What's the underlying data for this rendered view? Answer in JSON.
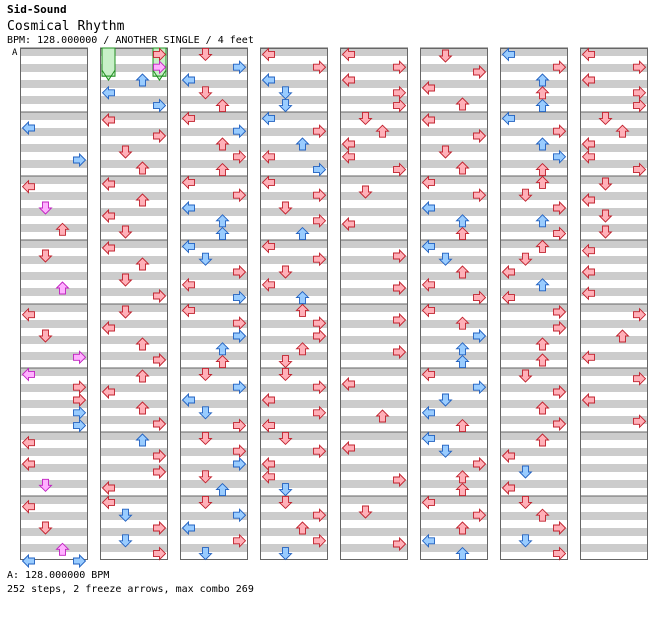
{
  "header": {
    "artist": "Sid-Sound",
    "title": "Cosmical Rhythm",
    "meta": "BPM: 128.000000 / ANOTHER SINGLE / 4 feet"
  },
  "marker": "A",
  "footer": {
    "bpm_line": "A: 128.000000 BPM",
    "stats_line": "252 steps, 2 freeze arrows, max combo 269"
  },
  "colors": {
    "quarter": "#ffb0b8",
    "quarter_stroke": "#c0202c",
    "eighth": "#99ccff",
    "eighth_stroke": "#2060c0",
    "sixteenth": "#ffb0ff",
    "sixteenth_stroke": "#c020c0",
    "freeze": "#c8f0c8",
    "freeze_stroke": "#209020",
    "stripe": "#cccccc"
  },
  "chart": {
    "columns": 8,
    "measures_per_column": 8,
    "notes": [
      [
        0,
        2,
        0,
        "e"
      ],
      [
        0,
        2,
        3,
        "e"
      ],
      [
        0,
        3,
        0,
        "q"
      ],
      [
        0,
        3,
        1,
        "s"
      ],
      [
        0,
        3,
        2,
        "q"
      ],
      [
        0,
        4,
        1,
        "q"
      ],
      [
        0,
        4,
        2,
        "s"
      ],
      [
        0,
        5,
        0,
        "q"
      ],
      [
        0,
        5,
        1,
        "q"
      ],
      [
        0,
        5,
        3,
        "s"
      ],
      [
        0,
        6,
        0,
        "s"
      ],
      [
        0,
        6,
        3,
        "q"
      ],
      [
        0,
        6,
        3,
        "q"
      ],
      [
        0,
        6,
        3,
        "e"
      ],
      [
        0,
        6,
        3,
        "e"
      ],
      [
        0,
        7,
        0,
        "q"
      ],
      [
        0,
        7,
        0,
        "q"
      ],
      [
        0,
        7,
        1,
        "s"
      ],
      [
        0,
        8,
        0,
        "q"
      ],
      [
        0,
        8,
        1,
        "q"
      ],
      [
        0,
        8,
        2,
        "s"
      ],
      [
        0,
        9,
        0,
        "e"
      ],
      [
        0,
        9,
        3,
        "e"
      ],
      [
        1,
        1,
        3,
        "q"
      ],
      [
        1,
        1,
        3,
        "s"
      ],
      [
        1,
        1,
        2,
        "e"
      ],
      [
        1,
        1,
        0,
        "e"
      ],
      [
        1,
        1,
        3,
        "e"
      ],
      [
        1,
        2,
        0,
        "q"
      ],
      [
        1,
        2,
        3,
        "q"
      ],
      [
        1,
        2,
        1,
        "q"
      ],
      [
        1,
        2,
        2,
        "q"
      ],
      [
        1,
        3,
        0,
        "q"
      ],
      [
        1,
        3,
        2,
        "q"
      ],
      [
        1,
        3,
        0,
        "q"
      ],
      [
        1,
        3,
        1,
        "q"
      ],
      [
        1,
        4,
        0,
        "q"
      ],
      [
        1,
        4,
        2,
        "q"
      ],
      [
        1,
        4,
        1,
        "q"
      ],
      [
        1,
        4,
        3,
        "q"
      ],
      [
        1,
        5,
        1,
        "q"
      ],
      [
        1,
        5,
        0,
        "q"
      ],
      [
        1,
        5,
        2,
        "q"
      ],
      [
        1,
        5,
        3,
        "q"
      ],
      [
        1,
        6,
        2,
        "q"
      ],
      [
        1,
        6,
        0,
        "q"
      ],
      [
        1,
        6,
        2,
        "q"
      ],
      [
        1,
        6,
        3,
        "q"
      ],
      [
        1,
        7,
        2,
        "e"
      ],
      [
        1,
        7,
        3,
        "q"
      ],
      [
        1,
        7,
        3,
        "q"
      ],
      [
        1,
        7,
        0,
        "q"
      ],
      [
        1,
        8,
        0,
        "q"
      ],
      [
        1,
        8,
        1,
        "e"
      ],
      [
        1,
        8,
        3,
        "q"
      ],
      [
        1,
        8,
        1,
        "e"
      ],
      [
        1,
        8,
        3,
        "q"
      ],
      [
        2,
        1,
        1,
        "q"
      ],
      [
        2,
        1,
        3,
        "e"
      ],
      [
        2,
        1,
        0,
        "e"
      ],
      [
        2,
        1,
        1,
        "q"
      ],
      [
        2,
        1,
        2,
        "q"
      ],
      [
        2,
        2,
        0,
        "q"
      ],
      [
        2,
        2,
        3,
        "e"
      ],
      [
        2,
        2,
        2,
        "q"
      ],
      [
        2,
        2,
        3,
        "q"
      ],
      [
        2,
        2,
        2,
        "q"
      ],
      [
        2,
        3,
        0,
        "q"
      ],
      [
        2,
        3,
        3,
        "q"
      ],
      [
        2,
        3,
        0,
        "e"
      ],
      [
        2,
        3,
        2,
        "e"
      ],
      [
        2,
        3,
        2,
        "e"
      ],
      [
        2,
        4,
        0,
        "e"
      ],
      [
        2,
        4,
        1,
        "e"
      ],
      [
        2,
        4,
        3,
        "q"
      ],
      [
        2,
        4,
        0,
        "q"
      ],
      [
        2,
        4,
        3,
        "e"
      ],
      [
        2,
        5,
        0,
        "q"
      ],
      [
        2,
        5,
        3,
        "q"
      ],
      [
        2,
        5,
        3,
        "e"
      ],
      [
        2,
        5,
        2,
        "e"
      ],
      [
        2,
        5,
        2,
        "q"
      ],
      [
        2,
        6,
        1,
        "q"
      ],
      [
        2,
        6,
        3,
        "e"
      ],
      [
        2,
        6,
        0,
        "e"
      ],
      [
        2,
        6,
        1,
        "e"
      ],
      [
        2,
        6,
        3,
        "q"
      ],
      [
        2,
        7,
        1,
        "q"
      ],
      [
        2,
        7,
        3,
        "q"
      ],
      [
        2,
        7,
        3,
        "e"
      ],
      [
        2,
        7,
        1,
        "q"
      ],
      [
        2,
        7,
        2,
        "e"
      ],
      [
        2,
        8,
        1,
        "q"
      ],
      [
        2,
        8,
        3,
        "e"
      ],
      [
        2,
        8,
        0,
        "e"
      ],
      [
        2,
        8,
        3,
        "q"
      ],
      [
        2,
        8,
        1,
        "e"
      ],
      [
        3,
        1,
        0,
        "q"
      ],
      [
        3,
        1,
        3,
        "q"
      ],
      [
        3,
        1,
        0,
        "e"
      ],
      [
        3,
        1,
        1,
        "e"
      ],
      [
        3,
        1,
        1,
        "e"
      ],
      [
        3,
        2,
        0,
        "e"
      ],
      [
        3,
        2,
        3,
        "q"
      ],
      [
        3,
        2,
        2,
        "e"
      ],
      [
        3,
        2,
        0,
        "q"
      ],
      [
        3,
        2,
        3,
        "e"
      ],
      [
        3,
        3,
        0,
        "q"
      ],
      [
        3,
        3,
        3,
        "q"
      ],
      [
        3,
        3,
        1,
        "q"
      ],
      [
        3,
        3,
        3,
        "q"
      ],
      [
        3,
        3,
        2,
        "e"
      ],
      [
        3,
        4,
        0,
        "q"
      ],
      [
        3,
        4,
        3,
        "q"
      ],
      [
        3,
        4,
        1,
        "q"
      ],
      [
        3,
        4,
        0,
        "q"
      ],
      [
        3,
        4,
        2,
        "e"
      ],
      [
        3,
        5,
        2,
        "q"
      ],
      [
        3,
        5,
        3,
        "q"
      ],
      [
        3,
        5,
        3,
        "q"
      ],
      [
        3,
        5,
        2,
        "q"
      ],
      [
        3,
        5,
        1,
        "q"
      ],
      [
        3,
        6,
        1,
        "q"
      ],
      [
        3,
        6,
        3,
        "q"
      ],
      [
        3,
        6,
        0,
        "q"
      ],
      [
        3,
        6,
        3,
        "q"
      ],
      [
        3,
        6,
        0,
        "q"
      ],
      [
        3,
        7,
        1,
        "q"
      ],
      [
        3,
        7,
        3,
        "q"
      ],
      [
        3,
        7,
        0,
        "q"
      ],
      [
        3,
        7,
        0,
        "q"
      ],
      [
        3,
        7,
        1,
        "e"
      ],
      [
        3,
        8,
        1,
        "q"
      ],
      [
        3,
        8,
        3,
        "q"
      ],
      [
        3,
        8,
        2,
        "q"
      ],
      [
        3,
        8,
        3,
        "q"
      ],
      [
        3,
        8,
        1,
        "e"
      ],
      [
        4,
        1,
        0,
        "q"
      ],
      [
        4,
        1,
        3,
        "q"
      ],
      [
        4,
        1,
        0,
        "q"
      ],
      [
        4,
        1,
        3,
        "q"
      ],
      [
        4,
        1,
        3,
        "q"
      ],
      [
        4,
        2,
        1,
        "q"
      ],
      [
        4,
        2,
        2,
        "q"
      ],
      [
        4,
        2,
        0,
        "q"
      ],
      [
        4,
        2,
        0,
        "q"
      ],
      [
        4,
        2,
        3,
        "q"
      ],
      [
        4,
        3,
        1,
        "q"
      ],
      [
        4,
        3,
        0,
        "q"
      ],
      [
        4,
        4,
        3,
        "q"
      ],
      [
        4,
        4,
        3,
        "q"
      ],
      [
        4,
        5,
        3,
        "q"
      ],
      [
        4,
        5,
        3,
        "q"
      ],
      [
        4,
        6,
        0,
        "q"
      ],
      [
        4,
        6,
        2,
        "q"
      ],
      [
        4,
        7,
        0,
        "q"
      ],
      [
        4,
        7,
        3,
        "q"
      ],
      [
        4,
        8,
        1,
        "q"
      ],
      [
        4,
        8,
        3,
        "q"
      ],
      [
        5,
        1,
        1,
        "q"
      ],
      [
        5,
        1,
        3,
        "q"
      ],
      [
        5,
        1,
        0,
        "q"
      ],
      [
        5,
        1,
        2,
        "q"
      ],
      [
        5,
        2,
        0,
        "q"
      ],
      [
        5,
        2,
        3,
        "q"
      ],
      [
        5,
        2,
        1,
        "q"
      ],
      [
        5,
        2,
        2,
        "q"
      ],
      [
        5,
        3,
        0,
        "q"
      ],
      [
        5,
        3,
        3,
        "q"
      ],
      [
        5,
        3,
        0,
        "e"
      ],
      [
        5,
        3,
        2,
        "e"
      ],
      [
        5,
        3,
        2,
        "q"
      ],
      [
        5,
        4,
        0,
        "e"
      ],
      [
        5,
        4,
        1,
        "e"
      ],
      [
        5,
        4,
        2,
        "q"
      ],
      [
        5,
        4,
        0,
        "q"
      ],
      [
        5,
        4,
        3,
        "q"
      ],
      [
        5,
        5,
        0,
        "q"
      ],
      [
        5,
        5,
        2,
        "q"
      ],
      [
        5,
        5,
        3,
        "e"
      ],
      [
        5,
        5,
        2,
        "e"
      ],
      [
        5,
        5,
        2,
        "e"
      ],
      [
        5,
        6,
        0,
        "q"
      ],
      [
        5,
        6,
        3,
        "e"
      ],
      [
        5,
        6,
        1,
        "e"
      ],
      [
        5,
        6,
        0,
        "e"
      ],
      [
        5,
        6,
        2,
        "q"
      ],
      [
        5,
        7,
        0,
        "e"
      ],
      [
        5,
        7,
        1,
        "e"
      ],
      [
        5,
        7,
        3,
        "q"
      ],
      [
        5,
        7,
        2,
        "q"
      ],
      [
        5,
        7,
        2,
        "q"
      ],
      [
        5,
        8,
        0,
        "q"
      ],
      [
        5,
        8,
        3,
        "q"
      ],
      [
        5,
        8,
        2,
        "q"
      ],
      [
        5,
        8,
        0,
        "e"
      ],
      [
        5,
        8,
        2,
        "e"
      ],
      [
        6,
        1,
        0,
        "e"
      ],
      [
        6,
        1,
        3,
        "q"
      ],
      [
        6,
        1,
        2,
        "e"
      ],
      [
        6,
        1,
        2,
        "q"
      ],
      [
        6,
        1,
        2,
        "e"
      ],
      [
        6,
        2,
        0,
        "e"
      ],
      [
        6,
        2,
        3,
        "q"
      ],
      [
        6,
        2,
        2,
        "e"
      ],
      [
        6,
        2,
        3,
        "e"
      ],
      [
        6,
        2,
        2,
        "q"
      ],
      [
        6,
        3,
        2,
        "q"
      ],
      [
        6,
        3,
        1,
        "q"
      ],
      [
        6,
        3,
        3,
        "q"
      ],
      [
        6,
        3,
        2,
        "e"
      ],
      [
        6,
        3,
        3,
        "q"
      ],
      [
        6,
        4,
        2,
        "q"
      ],
      [
        6,
        4,
        1,
        "q"
      ],
      [
        6,
        4,
        0,
        "q"
      ],
      [
        6,
        4,
        2,
        "e"
      ],
      [
        6,
        4,
        0,
        "q"
      ],
      [
        6,
        5,
        3,
        "q"
      ],
      [
        6,
        5,
        3,
        "q"
      ],
      [
        6,
        5,
        2,
        "q"
      ],
      [
        6,
        5,
        2,
        "q"
      ],
      [
        6,
        6,
        1,
        "q"
      ],
      [
        6,
        6,
        3,
        "q"
      ],
      [
        6,
        6,
        2,
        "q"
      ],
      [
        6,
        6,
        3,
        "q"
      ],
      [
        6,
        7,
        2,
        "q"
      ],
      [
        6,
        7,
        0,
        "q"
      ],
      [
        6,
        7,
        1,
        "e"
      ],
      [
        6,
        7,
        0,
        "q"
      ],
      [
        6,
        8,
        1,
        "q"
      ],
      [
        6,
        8,
        2,
        "q"
      ],
      [
        6,
        8,
        3,
        "q"
      ],
      [
        6,
        8,
        1,
        "e"
      ],
      [
        6,
        8,
        3,
        "q"
      ],
      [
        7,
        1,
        0,
        "q"
      ],
      [
        7,
        1,
        3,
        "q"
      ],
      [
        7,
        1,
        0,
        "q"
      ],
      [
        7,
        1,
        3,
        "q"
      ],
      [
        7,
        1,
        3,
        "q"
      ],
      [
        7,
        2,
        1,
        "q"
      ],
      [
        7,
        2,
        2,
        "q"
      ],
      [
        7,
        2,
        0,
        "q"
      ],
      [
        7,
        2,
        0,
        "q"
      ],
      [
        7,
        2,
        3,
        "q"
      ],
      [
        7,
        3,
        1,
        "q"
      ],
      [
        7,
        3,
        0,
        "q"
      ],
      [
        7,
        3,
        1,
        "q"
      ],
      [
        7,
        3,
        1,
        "q"
      ],
      [
        7,
        4,
        0,
        "q"
      ],
      [
        7,
        4,
        0,
        "q"
      ],
      [
        7,
        4,
        0,
        "q"
      ],
      [
        7,
        5,
        3,
        "q"
      ],
      [
        7,
        5,
        2,
        "q"
      ],
      [
        7,
        5,
        0,
        "q"
      ],
      [
        7,
        6,
        3,
        "q"
      ],
      [
        7,
        6,
        0,
        "q"
      ],
      [
        7,
        6,
        3,
        "q"
      ]
    ],
    "freezes": [
      [
        1,
        0,
        0,
        0,
        0.8
      ],
      [
        1,
        0,
        3,
        0,
        0.8
      ]
    ]
  }
}
